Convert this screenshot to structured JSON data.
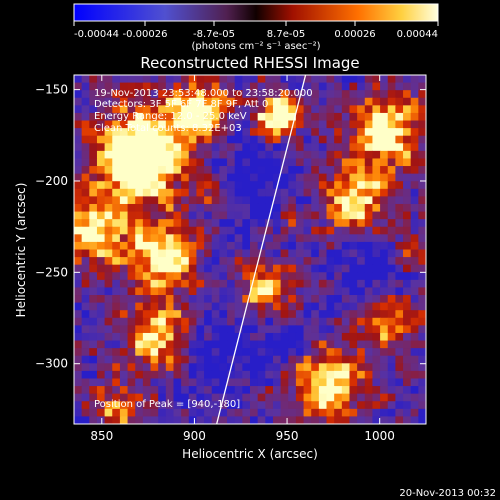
{
  "colorbar": {
    "ticks": [
      "-0.00044",
      "-0.00026",
      "-8.7e-05",
      "8.7e-05",
      "0.00026",
      "0.00044"
    ],
    "unit_label": "(photons cm⁻² s⁻¹ asec⁻²)"
  },
  "title": "Reconstructed RHESSI Image",
  "annotations": {
    "time": "19-Nov-2013 23:53:48.000 to 23:58:20.000",
    "detectors": "Detectors: 3F 5F 6F 7F 8F 9F, Att 0",
    "energy": "Energy Range: 12.0 - 25.0 keV",
    "method": "Clean     Total counts: 8.32E+03",
    "peak": "Position of Peak = [940,-180]"
  },
  "axes": {
    "xlabel": "Heliocentric X (arcsec)",
    "ylabel": "Heliocentric Y (arcsec)",
    "xticks": [
      "850",
      "900",
      "950",
      "1000"
    ],
    "yticks": [
      "-150",
      "-200",
      "-250",
      "-300"
    ]
  },
  "footer_timestamp": "20-Nov-2013 00:32",
  "chart_data": {
    "type": "heatmap",
    "title": "Reconstructed RHESSI Image",
    "xlabel": "Heliocentric X (arcsec)",
    "ylabel": "Heliocentric Y (arcsec)",
    "xlim": [
      835,
      1025
    ],
    "ylim": [
      -333,
      -142
    ],
    "xticks": [
      850,
      900,
      950,
      1000
    ],
    "yticks": [
      -150,
      -200,
      -250,
      -300
    ],
    "colorbar_range": [
      -0.00044,
      0.00044
    ],
    "peak_position": [
      940,
      -180
    ],
    "limb_line": [
      [
        912,
        -333
      ],
      [
        960,
        -142
      ]
    ],
    "colors": {
      "low": "#1a1aff",
      "mid_low": "#5a2da0",
      "zero": "#7a1f28",
      "mid_high": "#e03000",
      "high": "#ffff80"
    }
  }
}
